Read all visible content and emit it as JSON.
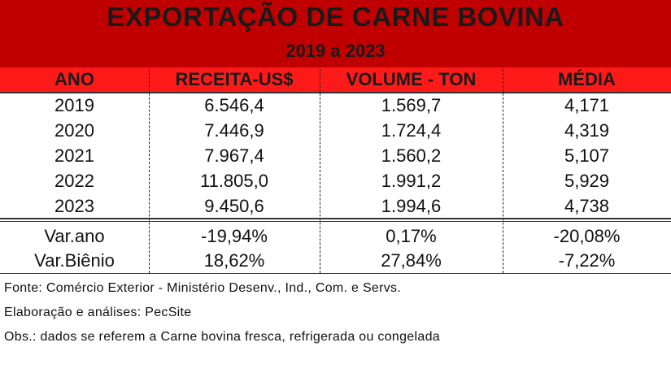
{
  "title": "EXPORTAÇÃO DE CARNE BOVINA",
  "subtitle": "2019 a 2023",
  "headers": [
    "ANO",
    "RECEITA-US$",
    "VOLUME - TON",
    "MÉDIA"
  ],
  "rows": [
    [
      "2019",
      "6.546,4",
      "1.569,7",
      "4,171"
    ],
    [
      "2020",
      "7.446,9",
      "1.724,4",
      "4,319"
    ],
    [
      "2021",
      "7.967,4",
      "1.560,2",
      "5,107"
    ],
    [
      "2022",
      "11.805,0",
      "1.991,2",
      "5,929"
    ],
    [
      "2023",
      "9.450,6",
      "1.994,6",
      "4,738"
    ]
  ],
  "variations": [
    [
      "Var.ano",
      "-19,94%",
      "0,17%",
      "-20,08%"
    ],
    [
      "Var.Biênio",
      "18,62%",
      "27,84%",
      "-7,22%"
    ]
  ],
  "notes": {
    "source": "Fonte: Comércio Exterior - Ministério Desenv., Ind., Com. e Servs.",
    "elaboration": "Elaboração e análises: PecSite",
    "obs": "Obs.: dados se referem a Carne bovina fresca, refrigerada ou congelada"
  },
  "colors": {
    "title_band": "#c00000",
    "header_band": "#ff1a1a"
  }
}
